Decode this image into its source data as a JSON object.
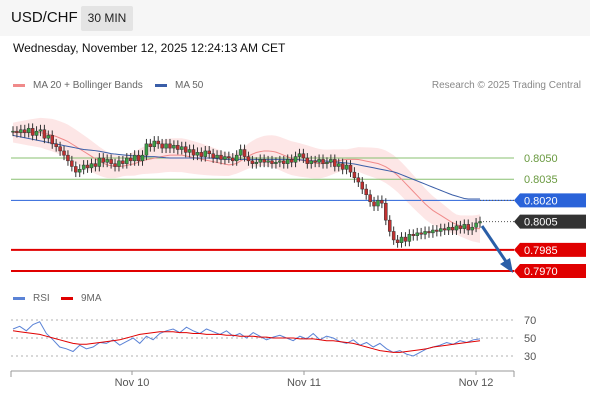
{
  "header": {
    "symbol": "USD/CHF",
    "timeframe": "30 MIN",
    "timestamp": "Wednesday, November 12, 2025 12:24:13 AM CET",
    "credit": "Research © 2025 Trading Central"
  },
  "colors": {
    "ma20": "#f08a8a",
    "ma50": "#3a5ea8",
    "bollinger_fill": "#fde0e0",
    "support": "#e00000",
    "resistance": "#88c070",
    "pivot": "#2a63d9",
    "current_price": "#333333",
    "forecast_arrow": "#2a5fa8",
    "rsi": "#5b83d6",
    "rsi_ma": "#e00000",
    "candle_up": "#3aa044",
    "candle_down": "#c03030"
  },
  "chart_data": [
    {
      "type": "candlestick",
      "title": "",
      "legend": [
        {
          "name": "MA 20 + Bollinger Bands",
          "color": "#f08a8a"
        },
        {
          "name": "MA 50",
          "color": "#3a5ea8"
        }
      ],
      "x_ticks": [
        "Nov 10",
        "Nov 11",
        "Nov 12"
      ],
      "ylim": [
        0.7965,
        0.8085
      ],
      "levels": [
        {
          "label": "0.8050",
          "value": 0.805,
          "kind": "resistance"
        },
        {
          "label": "0.8035",
          "value": 0.8035,
          "kind": "resistance"
        },
        {
          "label": "0.8020",
          "value": 0.802,
          "kind": "pivot"
        },
        {
          "label": "0.8005",
          "value": 0.8005,
          "kind": "current"
        },
        {
          "label": "0.7985",
          "value": 0.7985,
          "kind": "support"
        },
        {
          "label": "0.7970",
          "value": 0.797,
          "kind": "support"
        }
      ],
      "close": [
        0.8069,
        0.8068,
        0.807,
        0.8068,
        0.8071,
        0.8066,
        0.8069,
        0.807,
        0.8064,
        0.8066,
        0.806,
        0.8058,
        0.8055,
        0.8052,
        0.8048,
        0.8044,
        0.804,
        0.8042,
        0.8045,
        0.8043,
        0.8046,
        0.8044,
        0.805,
        0.8047,
        0.8049,
        0.8046,
        0.8044,
        0.8048,
        0.8046,
        0.805,
        0.8048,
        0.8052,
        0.8048,
        0.8052,
        0.806,
        0.8058,
        0.8062,
        0.806,
        0.8057,
        0.806,
        0.8057,
        0.8059,
        0.8056,
        0.8058,
        0.8054,
        0.8056,
        0.8052,
        0.8054,
        0.8051,
        0.8055,
        0.8053,
        0.805,
        0.8052,
        0.8049,
        0.8051,
        0.805,
        0.8048,
        0.8052,
        0.8056,
        0.8051,
        0.8048,
        0.8046,
        0.8047,
        0.8049,
        0.8047,
        0.8048,
        0.8046,
        0.8047,
        0.8048,
        0.8046,
        0.8049,
        0.8047,
        0.8051,
        0.8053,
        0.805,
        0.8046,
        0.8048,
        0.8047,
        0.8049,
        0.8046,
        0.8047,
        0.8049,
        0.8044,
        0.8046,
        0.8042,
        0.8045,
        0.804,
        0.8036,
        0.8033,
        0.8028,
        0.8024,
        0.8019,
        0.8016,
        0.802,
        0.8018,
        0.8006,
        0.7998,
        0.7992,
        0.799,
        0.7994,
        0.7991,
        0.7996,
        0.7995,
        0.7997,
        0.7996,
        0.7998,
        0.7997,
        0.7999,
        0.7998,
        0.8,
        0.7999,
        0.8001,
        0.7999,
        0.8002,
        0.8,
        0.8003,
        0.7999,
        0.8001,
        0.8004,
        0.8005
      ],
      "ma20": [
        0.8068,
        0.8068,
        0.8068,
        0.8068,
        0.8068,
        0.8067,
        0.8066,
        0.8064,
        0.8062,
        0.8059,
        0.8056,
        0.8053,
        0.805,
        0.8047,
        0.8045,
        0.8044,
        0.8044,
        0.8045,
        0.8046,
        0.8048,
        0.8049,
        0.805,
        0.8051,
        0.8052,
        0.8052,
        0.8052,
        0.8051,
        0.805,
        0.8049,
        0.8048,
        0.8047,
        0.8046,
        0.8045,
        0.8046,
        0.8049,
        0.8052,
        0.8054,
        0.8055,
        0.8055,
        0.8054,
        0.8052,
        0.805,
        0.8049,
        0.8048,
        0.8047,
        0.8046,
        0.8046,
        0.8047,
        0.8048,
        0.8049,
        0.8049,
        0.8049,
        0.8048,
        0.8047,
        0.8046,
        0.8044,
        0.8041,
        0.8037,
        0.8032,
        0.8027,
        0.8022,
        0.8017,
        0.8013,
        0.801,
        0.8007,
        0.8004,
        0.8002,
        0.8001,
        0.8,
        0.8
      ],
      "ma50": [
        0.8066,
        0.8064,
        0.8062,
        0.806,
        0.8058,
        0.8056,
        0.8055,
        0.8053,
        0.8052,
        0.8051,
        0.8051,
        0.805,
        0.805,
        0.805,
        0.805,
        0.8049,
        0.8049,
        0.8049,
        0.8049,
        0.8049,
        0.8049,
        0.8048,
        0.8048,
        0.8047,
        0.8046,
        0.8044,
        0.8042,
        0.804,
        0.8036,
        0.8032,
        0.8028,
        0.8024,
        0.8021,
        0.8021
      ]
    },
    {
      "type": "line",
      "title": "",
      "legend": [
        {
          "name": "RSI",
          "color": "#5b83d6"
        },
        {
          "name": "9MA",
          "color": "#e00000"
        }
      ],
      "ylim": [
        20,
        80
      ],
      "y_ticks": [
        "70",
        "50",
        "30"
      ],
      "rsi": [
        60,
        63,
        58,
        65,
        68,
        55,
        48,
        40,
        38,
        35,
        42,
        38,
        40,
        45,
        44,
        48,
        42,
        46,
        50,
        44,
        52,
        48,
        55,
        58,
        60,
        56,
        62,
        58,
        55,
        60,
        57,
        54,
        58,
        52,
        55,
        50,
        56,
        52,
        48,
        51,
        53,
        50,
        47,
        52,
        49,
        55,
        48,
        52,
        50,
        46,
        44,
        48,
        42,
        45,
        40,
        44,
        38,
        34,
        36,
        32,
        30,
        34,
        38,
        40,
        42,
        45,
        43,
        47,
        45,
        48,
        49
      ],
      "ma9": [
        58,
        57,
        56,
        55,
        54,
        52,
        50,
        48,
        46,
        44,
        43,
        43,
        44,
        45,
        46,
        47,
        48,
        50,
        52,
        54,
        55,
        56,
        57,
        57,
        57,
        56,
        56,
        55,
        55,
        54,
        54,
        54,
        53,
        53,
        52,
        52,
        52,
        51,
        51,
        50,
        50,
        50,
        50,
        49,
        49,
        49,
        48,
        47,
        47,
        46,
        45,
        44,
        42,
        40,
        38,
        36,
        35,
        34,
        34,
        35,
        36,
        37,
        38,
        40,
        41,
        42,
        43,
        44,
        45,
        46,
        47
      ]
    }
  ]
}
